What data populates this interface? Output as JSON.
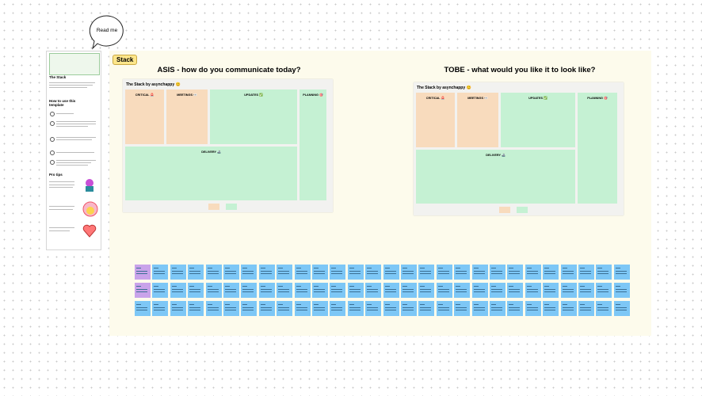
{
  "read_me": "Read me",
  "tag": "Stack",
  "sidebar": {
    "title": "The Stack",
    "how_to": "How to use this template",
    "pro_tips": "Pro tips"
  },
  "asis": {
    "title": "ASIS - how do you communicate today?",
    "board": {
      "heading": "The Stack by asynchappy 😊",
      "critical": "CRITICAL 🚨",
      "meetings": "MEETINGS 👀",
      "updates": "UPDATES ✅",
      "planning": "PLANNING 🎯",
      "delivery": "DELIVERY 🚢"
    }
  },
  "tobe": {
    "title": "TOBE - what would you like it to look like?",
    "board": {
      "heading": "The Stack by asynchappy 😊",
      "critical": "CRITICAL 🚨",
      "meetings": "MEETINGS 👀",
      "updates": "UPDATES ✅",
      "planning": "PLANNING 🎯",
      "delivery": "DELIVERY 🚢"
    }
  }
}
